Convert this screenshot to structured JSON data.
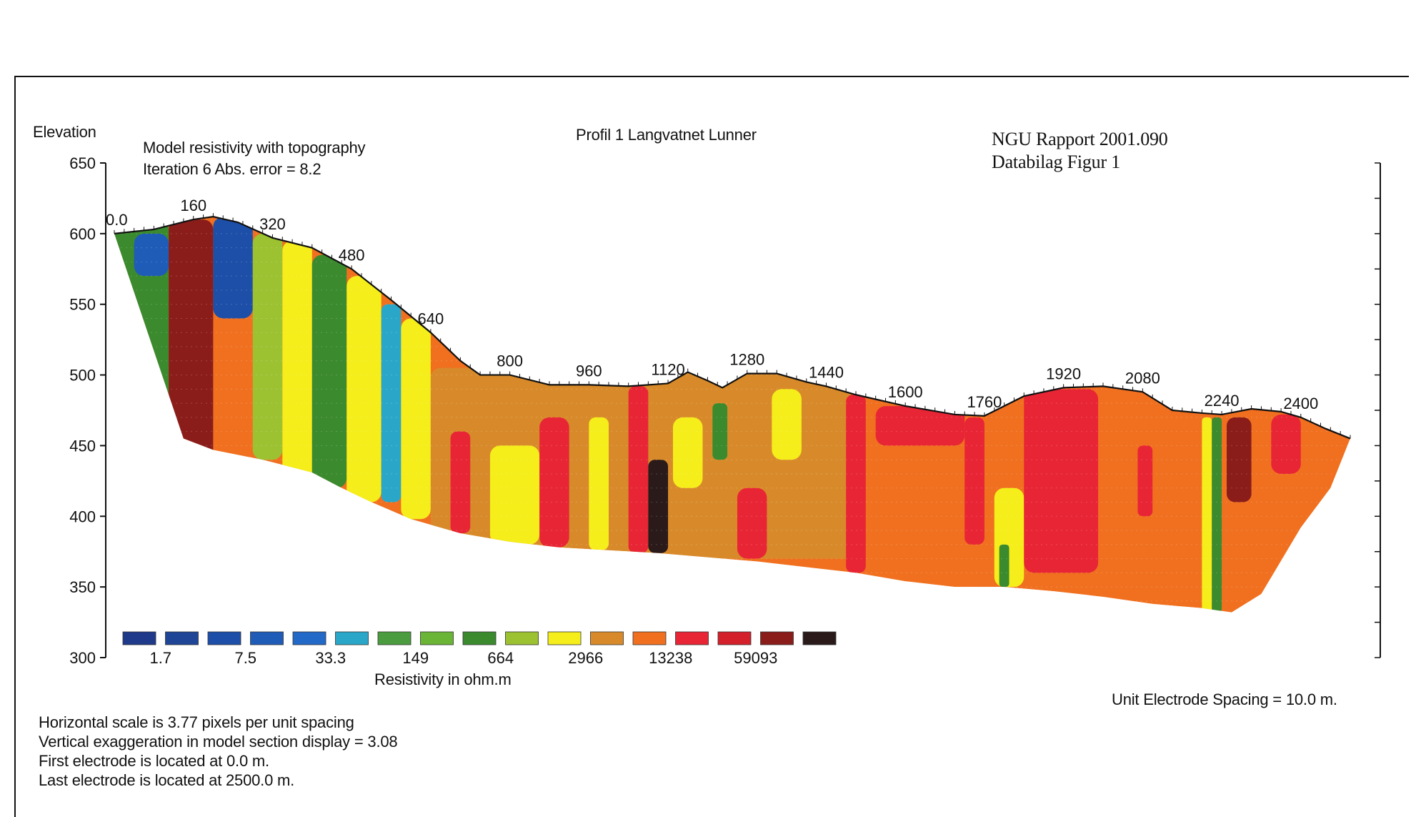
{
  "chart_data": {
    "type": "heatmap",
    "title": "Profil 1 Langvatnet Lunner",
    "subtitle_lines": [
      "Model resistivity with topography",
      "Iteration 6 Abs. error = 8.2"
    ],
    "report_lines": [
      "NGU Rapport 2001.090",
      "Databilag Figur 1"
    ],
    "ylabel": "Elevation",
    "yticks": [
      300,
      350,
      400,
      450,
      500,
      550,
      600,
      650
    ],
    "ylim": [
      300,
      650
    ],
    "xlim": [
      0,
      2500
    ],
    "distance_labels": [
      {
        "x": 0,
        "text": "0.0"
      },
      {
        "x": 160,
        "text": "160"
      },
      {
        "x": 320,
        "text": "320"
      },
      {
        "x": 480,
        "text": "480"
      },
      {
        "x": 640,
        "text": "640"
      },
      {
        "x": 800,
        "text": "800"
      },
      {
        "x": 960,
        "text": "960"
      },
      {
        "x": 1120,
        "text": "1120"
      },
      {
        "x": 1280,
        "text": "1280"
      },
      {
        "x": 1440,
        "text": "1440"
      },
      {
        "x": 1600,
        "text": "1600"
      },
      {
        "x": 1760,
        "text": "1760"
      },
      {
        "x": 1920,
        "text": "1920"
      },
      {
        "x": 2080,
        "text": "2080"
      },
      {
        "x": 2240,
        "text": "2240"
      },
      {
        "x": 2400,
        "text": "2400"
      }
    ],
    "topography": [
      [
        0,
        600
      ],
      [
        80,
        603
      ],
      [
        160,
        610
      ],
      [
        200,
        612
      ],
      [
        250,
        608
      ],
      [
        320,
        597
      ],
      [
        400,
        590
      ],
      [
        480,
        575
      ],
      [
        560,
        553
      ],
      [
        640,
        530
      ],
      [
        700,
        510
      ],
      [
        740,
        500
      ],
      [
        800,
        500
      ],
      [
        880,
        493
      ],
      [
        960,
        493
      ],
      [
        1040,
        492
      ],
      [
        1120,
        494
      ],
      [
        1160,
        502
      ],
      [
        1200,
        496
      ],
      [
        1230,
        491
      ],
      [
        1280,
        501
      ],
      [
        1340,
        501
      ],
      [
        1400,
        495
      ],
      [
        1440,
        492
      ],
      [
        1500,
        486
      ],
      [
        1600,
        478
      ],
      [
        1700,
        472
      ],
      [
        1760,
        471
      ],
      [
        1840,
        485
      ],
      [
        1920,
        491
      ],
      [
        2000,
        492
      ],
      [
        2080,
        488
      ],
      [
        2140,
        475
      ],
      [
        2200,
        473
      ],
      [
        2240,
        472
      ],
      [
        2300,
        476
      ],
      [
        2360,
        474
      ],
      [
        2400,
        470
      ],
      [
        2450,
        462
      ],
      [
        2500,
        455
      ]
    ],
    "base": [
      [
        0,
        600
      ],
      [
        140,
        455
      ],
      [
        200,
        447
      ],
      [
        300,
        440
      ],
      [
        400,
        431
      ],
      [
        460,
        420
      ],
      [
        520,
        410
      ],
      [
        600,
        398
      ],
      [
        700,
        388
      ],
      [
        800,
        382
      ],
      [
        900,
        378
      ],
      [
        1000,
        376
      ],
      [
        1100,
        374
      ],
      [
        1200,
        371
      ],
      [
        1300,
        368
      ],
      [
        1400,
        364
      ],
      [
        1500,
        360
      ],
      [
        1600,
        354
      ],
      [
        1700,
        350
      ],
      [
        1800,
        350
      ],
      [
        1900,
        347
      ],
      [
        2000,
        343
      ],
      [
        2100,
        338
      ],
      [
        2200,
        335
      ],
      [
        2260,
        332
      ],
      [
        2320,
        345
      ],
      [
        2400,
        392
      ],
      [
        2460,
        420
      ],
      [
        2500,
        455
      ]
    ],
    "regions": [
      {
        "x": [
          0,
          110
        ],
        "ylim": [
          440,
          610
        ],
        "level": 8
      },
      {
        "x": [
          40,
          110
        ],
        "ylim": [
          570,
          600
        ],
        "level": 3
      },
      {
        "x": [
          110,
          200
        ],
        "ylim": [
          440,
          610
        ],
        "level": 15
      },
      {
        "x": [
          200,
          280
        ],
        "ylim": [
          540,
          612
        ],
        "level": 2
      },
      {
        "x": [
          200,
          280
        ],
        "ylim": [
          440,
          540
        ],
        "level": 12
      },
      {
        "x": [
          280,
          340
        ],
        "ylim": [
          440,
          600
        ],
        "level": 9
      },
      {
        "x": [
          340,
          400
        ],
        "ylim": [
          420,
          595
        ],
        "level": 10
      },
      {
        "x": [
          400,
          470
        ],
        "ylim": [
          420,
          585
        ],
        "level": 8
      },
      {
        "x": [
          470,
          540
        ],
        "ylim": [
          410,
          570
        ],
        "level": 10
      },
      {
        "x": [
          540,
          580
        ],
        "ylim": [
          410,
          550
        ],
        "level": 5
      },
      {
        "x": [
          580,
          640
        ],
        "ylim": [
          398,
          540
        ],
        "level": 10
      },
      {
        "x": [
          640,
          1500
        ],
        "ylim": [
          370,
          505
        ],
        "level": 11
      },
      {
        "x": [
          680,
          720
        ],
        "ylim": [
          388,
          460
        ],
        "level": 13
      },
      {
        "x": [
          760,
          860
        ],
        "ylim": [
          380,
          450
        ],
        "level": 10
      },
      {
        "x": [
          860,
          920
        ],
        "ylim": [
          378,
          470
        ],
        "level": 13
      },
      {
        "x": [
          960,
          1000
        ],
        "ylim": [
          376,
          470
        ],
        "level": 10
      },
      {
        "x": [
          1040,
          1080
        ],
        "ylim": [
          374,
          492
        ],
        "level": 13
      },
      {
        "x": [
          1080,
          1120
        ],
        "ylim": [
          374,
          440
        ],
        "level": 16
      },
      {
        "x": [
          1130,
          1190
        ],
        "ylim": [
          420,
          470
        ],
        "level": 10
      },
      {
        "x": [
          1210,
          1240
        ],
        "ylim": [
          440,
          480
        ],
        "level": 8
      },
      {
        "x": [
          1260,
          1320
        ],
        "ylim": [
          370,
          420
        ],
        "level": 13
      },
      {
        "x": [
          1330,
          1390
        ],
        "ylim": [
          440,
          490
        ],
        "level": 10
      },
      {
        "x": [
          1480,
          1520
        ],
        "ylim": [
          360,
          486
        ],
        "level": 13
      },
      {
        "x": [
          1540,
          1720
        ],
        "ylim": [
          450,
          478
        ],
        "level": 13
      },
      {
        "x": [
          1720,
          1760
        ],
        "ylim": [
          380,
          470
        ],
        "level": 13
      },
      {
        "x": [
          1780,
          1840
        ],
        "ylim": [
          350,
          420
        ],
        "level": 10
      },
      {
        "x": [
          1790,
          1810
        ],
        "ylim": [
          350,
          380
        ],
        "level": 8
      },
      {
        "x": [
          1840,
          1990
        ],
        "ylim": [
          360,
          490
        ],
        "level": 13
      },
      {
        "x": [
          2070,
          2100
        ],
        "ylim": [
          400,
          450
        ],
        "level": 13
      },
      {
        "x": [
          2200,
          2220
        ],
        "ylim": [
          332,
          470
        ],
        "level": 10
      },
      {
        "x": [
          2220,
          2240
        ],
        "ylim": [
          332,
          470
        ],
        "level": 8
      },
      {
        "x": [
          2250,
          2300
        ],
        "ylim": [
          410,
          470
        ],
        "level": 15
      },
      {
        "x": [
          2340,
          2400
        ],
        "ylim": [
          430,
          472
        ],
        "level": 13
      }
    ],
    "legend": {
      "colors": [
        "#1f3a8a",
        "#1f4597",
        "#1d4fa8",
        "#1e5cb8",
        "#2369c8",
        "#2aa7c8",
        "#4a9c3e",
        "#6ab535",
        "#3b8a2e",
        "#9cc232",
        "#f5ee1a",
        "#d88a2a",
        "#f07020",
        "#e82535",
        "#d4202a",
        "#8a1d1a",
        "#2a1a1a"
      ],
      "labels": [
        {
          "index": 1,
          "text": "1.7"
        },
        {
          "index": 3,
          "text": "7.5"
        },
        {
          "index": 5,
          "text": "33.3"
        },
        {
          "index": 7,
          "text": "149"
        },
        {
          "index": 9,
          "text": "664"
        },
        {
          "index": 11,
          "text": "2966"
        },
        {
          "index": 13,
          "text": "13238"
        },
        {
          "index": 15,
          "text": "59093"
        }
      ],
      "title": "Resistivity in ohm.m"
    },
    "unit_note": "Unit Electrode Spacing = 10.0 m.",
    "notes": [
      "Horizontal scale is 3.77 pixels per unit spacing",
      "Vertical exaggeration in model section display = 3.08",
      "First electrode is located at 0.0  m.",
      "Last electrode is located at 2500.0 m."
    ]
  }
}
